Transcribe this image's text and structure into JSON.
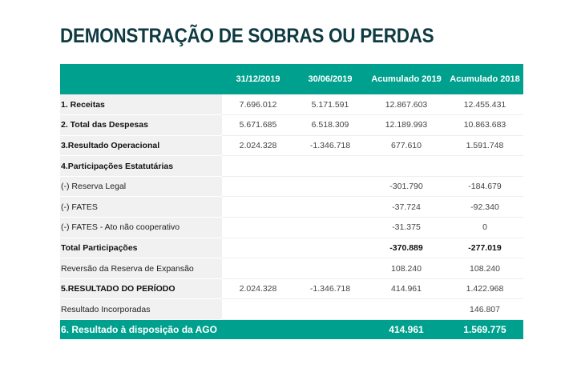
{
  "title": "DEMONSTRAÇÃO DE SOBRAS OU PERDAS",
  "colors": {
    "header": "#00a08e",
    "title": "#0e3a42",
    "label_bg": "#f1f1f1"
  },
  "columns": [
    "",
    "31/12/2019",
    "30/06/2019",
    "Acumulado 2019",
    "Acumulado 2018"
  ],
  "rows": [
    {
      "label": "1. Receitas",
      "values": [
        "7.696.012",
        "5.171.591",
        "12.867.603",
        "12.455.431"
      ]
    },
    {
      "label": "2. Total das Despesas",
      "values": [
        "5.671.685",
        "6.518.309",
        "12.189.993",
        "10.863.683"
      ]
    },
    {
      "label": "3.Resultado Operacional",
      "values": [
        "2.024.328",
        "-1.346.718",
        "677.610",
        "1.591.748"
      ]
    },
    {
      "label": "4.Participações Estatutárias",
      "values": [
        "",
        "",
        "",
        ""
      ]
    },
    {
      "label": "(-) Reserva Legal",
      "values": [
        "",
        "",
        "-301.790",
        "-184.679"
      ]
    },
    {
      "label": "(-) FATES",
      "values": [
        "",
        "",
        "-37.724",
        "-92.340"
      ]
    },
    {
      "label": "(-) FATES - Ato não cooperativo",
      "values": [
        "",
        "",
        "-31.375",
        "0"
      ]
    },
    {
      "label": "Total Participações",
      "values": [
        "",
        "",
        "-370.889",
        "-277.019"
      ]
    },
    {
      "label": "Reversão da Reserva de Expansão",
      "values": [
        "",
        "",
        "108.240",
        "108.240"
      ]
    },
    {
      "label": "5.RESULTADO DO PERÍODO",
      "values": [
        "2.024.328",
        "-1.346.718",
        "414.961",
        "1.422.968"
      ]
    },
    {
      "label": "Resultado Incorporadas",
      "values": [
        "",
        "",
        "",
        "146.807"
      ]
    }
  ],
  "final": {
    "label": "6. Resultado  à disposição  da AGO",
    "values": [
      "",
      "",
      "414.961",
      "1.569.775"
    ]
  }
}
